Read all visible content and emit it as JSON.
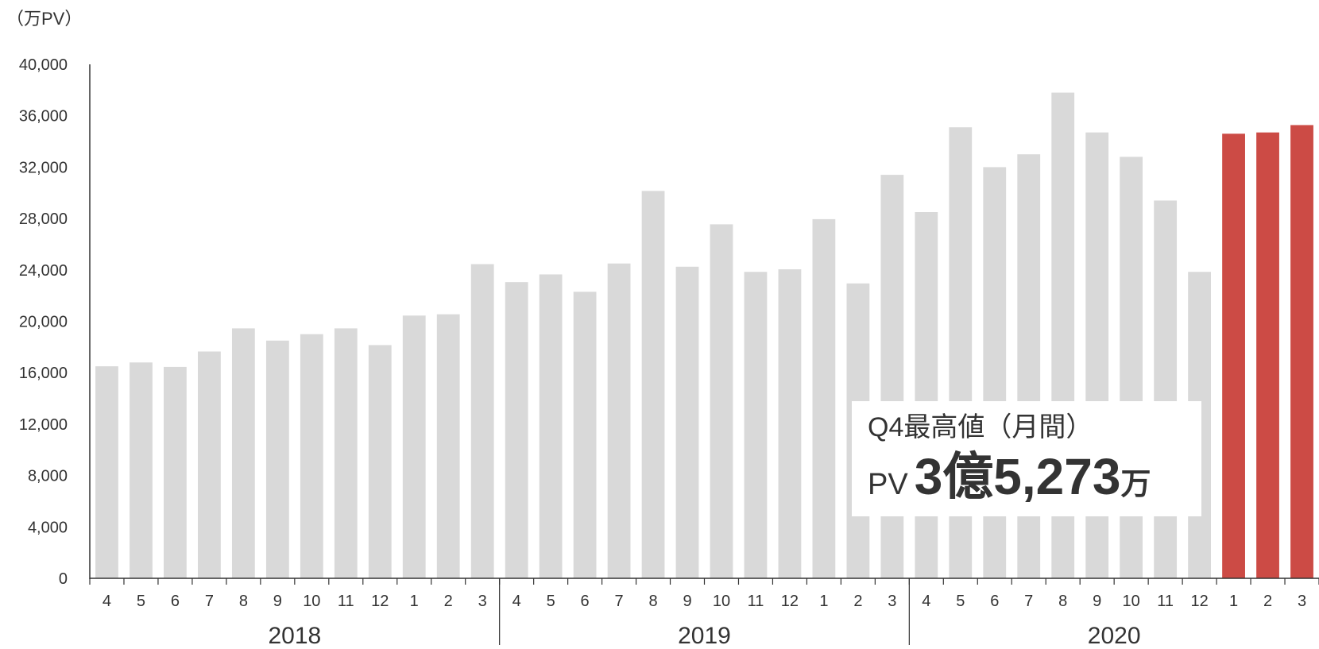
{
  "chart_data": {
    "type": "bar",
    "ylabel": "（万PV）",
    "ylim": [
      0,
      40000
    ],
    "yticks": [
      "0",
      "4,000",
      "8,000",
      "12,000",
      "16,000",
      "20,000",
      "24,000",
      "28,000",
      "32,000",
      "36,000",
      "40,000"
    ],
    "categories": [
      "4",
      "5",
      "6",
      "7",
      "8",
      "9",
      "10",
      "11",
      "12",
      "1",
      "2",
      "3",
      "4",
      "5",
      "6",
      "7",
      "8",
      "9",
      "10",
      "11",
      "12",
      "1",
      "2",
      "3",
      "4",
      "5",
      "6",
      "7",
      "8",
      "9",
      "10",
      "11",
      "12",
      "1",
      "2",
      "3"
    ],
    "values": [
      16500,
      16800,
      16450,
      17650,
      19450,
      18500,
      19000,
      19450,
      18150,
      20450,
      20550,
      24450,
      23050,
      23650,
      22300,
      24500,
      30150,
      24250,
      27550,
      23850,
      24050,
      27950,
      22950,
      31400,
      28500,
      35100,
      32000,
      33000,
      37800,
      34700,
      32800,
      29400,
      23850,
      34600,
      34700,
      35273
    ],
    "highlight_indices": [
      33,
      34,
      35
    ],
    "year_groups": [
      {
        "label": "2018",
        "start": 0,
        "count": 12
      },
      {
        "label": "2019",
        "start": 12,
        "count": 12
      },
      {
        "label": "2020",
        "start": 24,
        "count": 12
      }
    ],
    "colors": {
      "bar": "#d9d9d9",
      "highlight": "#cc4b45",
      "axis": "#333333"
    },
    "grid": false,
    "legend": "none"
  },
  "annotation": {
    "title": "Q4最高値（月間）",
    "prefix": "PV",
    "value": "3億5,273",
    "unit": "万"
  }
}
